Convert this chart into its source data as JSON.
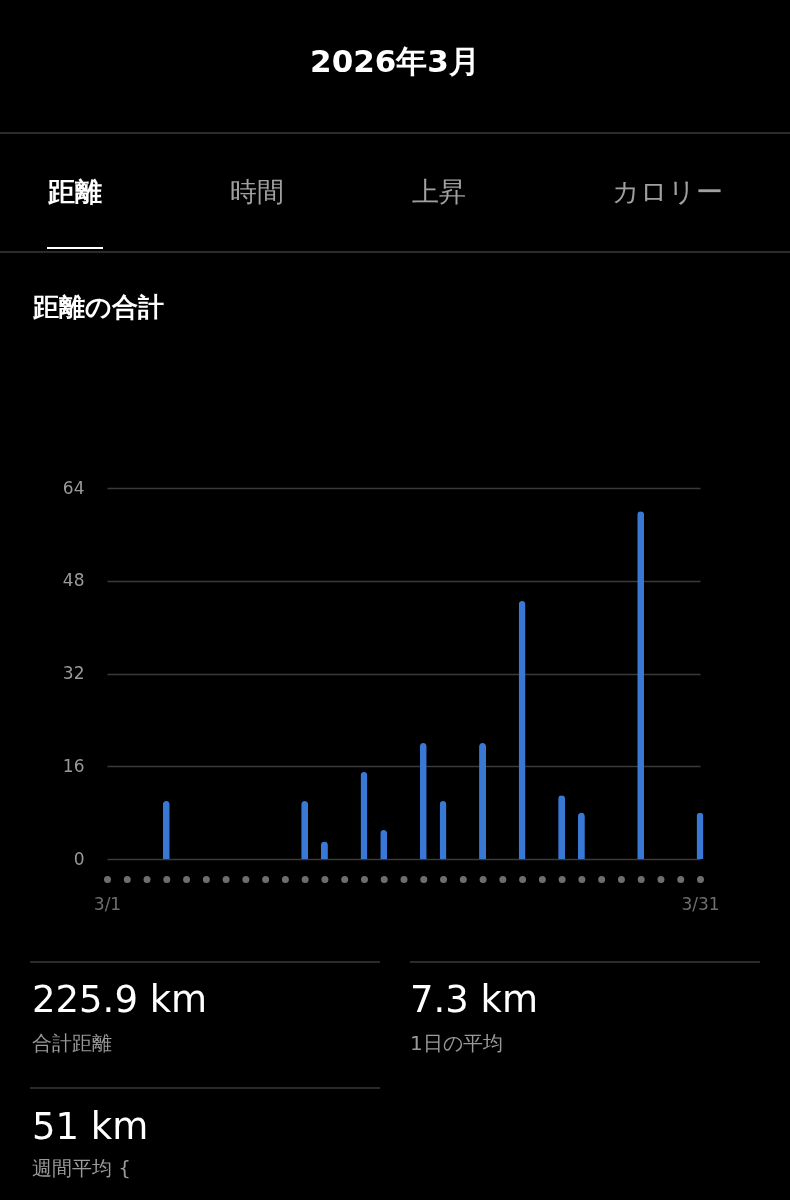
{
  "chart_data": {
    "type": "bar",
    "title": "2026年3月",
    "subtitle": "距離の合計",
    "categories": [
      "3/1",
      null,
      null,
      null,
      null,
      null,
      null,
      null,
      null,
      null,
      null,
      null,
      null,
      null,
      null,
      null,
      null,
      null,
      null,
      null,
      null,
      null,
      null,
      null,
      null,
      null,
      null,
      null,
      null,
      null,
      "3/31"
    ],
    "values": [
      null,
      null,
      null,
      10,
      null,
      null,
      null,
      null,
      null,
      null,
      10,
      3,
      null,
      15,
      5,
      null,
      20,
      10,
      null,
      20,
      null,
      44.5,
      null,
      11,
      8,
      null,
      null,
      60,
      null,
      null,
      8
    ],
    "color": "#3a78d6",
    "ylim": [
      0,
      64
    ],
    "yticks": [
      0,
      16,
      32,
      48,
      64
    ],
    "grid": "y",
    "annotations": [
      "距離",
      "時間",
      "上昇",
      "カロリー",
      "225.9 km",
      "合計距離",
      "7.3 km",
      "1日の平均",
      "51 km",
      "週間平均 {"
    ]
  }
}
